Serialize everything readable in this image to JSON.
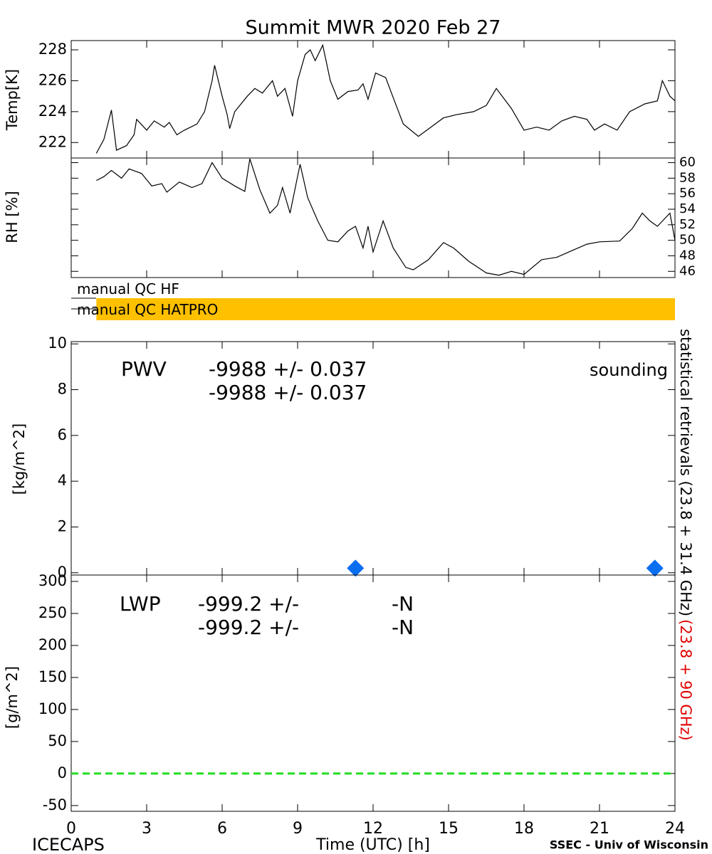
{
  "title": "Summit MWR 2020 Feb 27",
  "footer": {
    "left": "ICECAPS",
    "right": "SSEC - Univ of Wisconsin"
  },
  "right_label": [
    {
      "text": "statistical retrievals (23.8 + 31.4 GHz)",
      "color": "#000000"
    },
    {
      "text": "(23.8 + 90 GHz)",
      "color": "#e00000"
    }
  ],
  "qc": {
    "rows": [
      {
        "label": "manual QC HF"
      },
      {
        "label": "manual QC HATPRO",
        "start": 1.0,
        "end": 24,
        "color": "#ffc000"
      }
    ]
  },
  "chart_data": [
    {
      "type": "line",
      "ylabel": "Temp[K]",
      "xlim": [
        0,
        24
      ],
      "xticks": [
        0,
        3,
        6,
        9,
        12,
        15,
        18,
        21,
        24
      ],
      "ylim": [
        221,
        228.6
      ],
      "yticks": [
        222,
        224,
        226,
        228
      ],
      "series": [
        {
          "color": "#000000",
          "x": [
            1.0,
            1.3,
            1.6,
            1.8,
            2.2,
            2.5,
            2.6,
            3.0,
            3.3,
            3.7,
            3.9,
            4.2,
            4.5,
            5.0,
            5.3,
            5.6,
            5.7,
            6.0,
            6.2,
            6.3,
            6.5,
            7.0,
            7.3,
            7.6,
            8.0,
            8.2,
            8.5,
            8.8,
            9.0,
            9.3,
            9.5,
            9.7,
            10.0,
            10.3,
            10.6,
            11.0,
            11.4,
            11.6,
            11.8,
            12.1,
            12.5,
            12.8,
            13.2,
            13.8,
            14.3,
            14.8,
            15.3,
            16.0,
            16.5,
            16.9,
            17.5,
            18.0,
            18.5,
            19.0,
            19.5,
            20.0,
            20.5,
            20.8,
            21.2,
            21.7,
            22.2,
            22.8,
            23.3,
            23.5,
            23.8,
            24.0
          ],
          "values": [
            221.3,
            222.2,
            224.1,
            221.5,
            221.8,
            222.5,
            223.5,
            222.8,
            223.4,
            223.0,
            223.3,
            222.5,
            222.8,
            223.2,
            224.0,
            226.0,
            227.0,
            225.0,
            223.8,
            222.9,
            224.0,
            225.0,
            225.5,
            225.2,
            226.0,
            225.0,
            225.5,
            223.7,
            226.0,
            227.7,
            228.0,
            227.3,
            228.3,
            226.0,
            224.8,
            225.3,
            225.4,
            225.8,
            224.8,
            226.5,
            226.2,
            224.9,
            223.2,
            222.4,
            223.0,
            223.6,
            223.8,
            224.0,
            224.4,
            225.5,
            224.2,
            222.8,
            223.0,
            222.8,
            223.4,
            223.7,
            223.5,
            222.8,
            223.2,
            222.8,
            224.0,
            224.5,
            224.7,
            226.0,
            225.0,
            224.7
          ]
        }
      ]
    },
    {
      "type": "line",
      "ylabel": "RH [%]",
      "y_axis_side": "right",
      "xlim": [
        0,
        24
      ],
      "xticks": [
        0,
        3,
        6,
        9,
        12,
        15,
        18,
        21,
        24
      ],
      "ylim": [
        45.2,
        60.6
      ],
      "yticks": [
        46,
        48,
        50,
        52,
        54,
        56,
        58,
        60
      ],
      "series": [
        {
          "color": "#000000",
          "x": [
            1.0,
            1.3,
            1.6,
            2.0,
            2.3,
            2.8,
            3.2,
            3.6,
            3.8,
            4.3,
            4.8,
            5.2,
            5.6,
            6.0,
            6.5,
            6.9,
            7.1,
            7.5,
            7.9,
            8.2,
            8.4,
            8.7,
            9.1,
            9.4,
            9.8,
            10.2,
            10.6,
            11.0,
            11.3,
            11.6,
            11.8,
            12.0,
            12.4,
            12.8,
            13.3,
            13.6,
            14.2,
            14.8,
            15.2,
            15.8,
            16.5,
            17.0,
            17.5,
            18.0,
            18.7,
            19.3,
            20.0,
            20.5,
            21.0,
            21.8,
            22.3,
            22.7,
            23.0,
            23.3,
            23.8,
            24.0
          ],
          "values": [
            57.7,
            58.2,
            59.0,
            58.0,
            59.2,
            58.6,
            57.0,
            57.3,
            56.2,
            57.5,
            56.8,
            57.3,
            60.0,
            58.0,
            57.0,
            56.3,
            60.5,
            56.5,
            53.5,
            54.5,
            56.8,
            53.5,
            59.8,
            55.5,
            52.5,
            50.0,
            49.8,
            51.2,
            51.8,
            49.0,
            51.8,
            48.5,
            52.5,
            49.0,
            46.5,
            46.2,
            47.5,
            49.7,
            49.0,
            47.3,
            45.8,
            45.5,
            46.0,
            45.6,
            47.5,
            47.8,
            48.8,
            49.5,
            49.8,
            49.9,
            51.5,
            53.5,
            52.5,
            51.8,
            53.5,
            50.0
          ]
        }
      ]
    },
    {
      "type": "scatter",
      "ylabel": "[kg/m^2]",
      "xlim": [
        0,
        24
      ],
      "xticks": [
        0,
        3,
        6,
        9,
        12,
        15,
        18,
        21,
        24
      ],
      "ylim": [
        -0.1,
        10.1
      ],
      "yticks": [
        0,
        2,
        4,
        6,
        8,
        10
      ],
      "series": [
        {
          "name": "sounding",
          "color": "#0a6ef0",
          "x": [
            11.3,
            23.2
          ],
          "values": [
            0.2,
            0.2
          ]
        }
      ],
      "annotations": [
        {
          "text": "PWV",
          "color": "#000000"
        },
        {
          "text": "-9988 +/- 0.037",
          "color": "#000000"
        },
        {
          "text": "-9988 +/- 0.037",
          "color": "#e00000"
        }
      ]
    },
    {
      "type": "line",
      "ylabel": "[g/m^2]",
      "xlabel": "Time (UTC) [h]",
      "xlim": [
        0,
        24
      ],
      "xticks": [
        0,
        3,
        6,
        9,
        12,
        15,
        18,
        21,
        24
      ],
      "ylim": [
        -59,
        310
      ],
      "yticks": [
        -50,
        0,
        50,
        100,
        150,
        200,
        250,
        300
      ],
      "series": [
        {
          "color": "#22dd22",
          "dashed": true,
          "x": [
            0,
            24
          ],
          "values": [
            0,
            0
          ]
        }
      ],
      "annotations": [
        {
          "text": "LWP",
          "color": "#000000"
        },
        {
          "text": "-999.2 +/-",
          "color": "#000000"
        },
        {
          "text": "-N",
          "color": "#000000"
        },
        {
          "text": "-999.2 +/-",
          "color": "#e00000"
        },
        {
          "text": "-N",
          "color": "#e00000"
        }
      ]
    }
  ]
}
